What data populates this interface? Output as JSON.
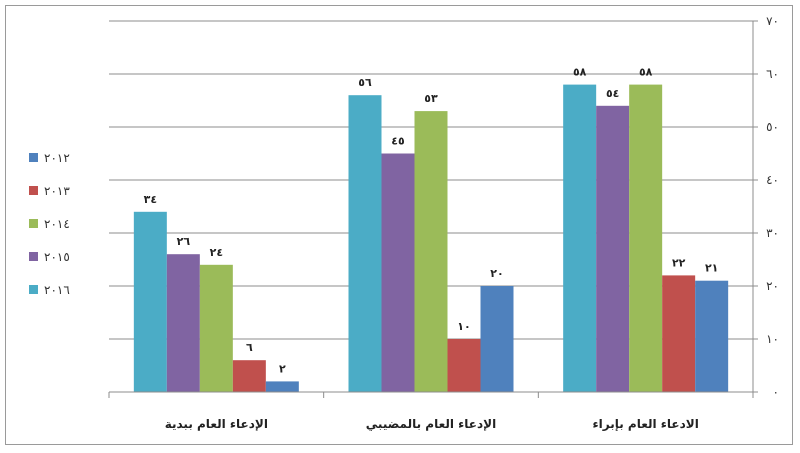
{
  "chart_data": {
    "type": "bar",
    "categories": [
      "الادعاء العام بإبراء",
      "الإدعاء العام بالمضيبي",
      "الإدعاء العام ببدية"
    ],
    "series": [
      {
        "name": "٢٠١٢",
        "color": "#4f81bd",
        "values": [
          21,
          20,
          2
        ],
        "labels": [
          "٢١",
          "٢٠",
          "٢"
        ]
      },
      {
        "name": "٢٠١٣",
        "color": "#c0504d",
        "values": [
          22,
          10,
          6
        ],
        "labels": [
          "٢٢",
          "١٠",
          "٦"
        ]
      },
      {
        "name": "٢٠١٤",
        "color": "#9bbb59",
        "values": [
          58,
          53,
          24
        ],
        "labels": [
          "٥٨",
          "٥٣",
          "٢٤"
        ]
      },
      {
        "name": "٢٠١٥",
        "color": "#8064a2",
        "values": [
          54,
          45,
          26
        ],
        "labels": [
          "٥٤",
          "٤٥",
          "٢٦"
        ]
      },
      {
        "name": "٢٠١٦",
        "color": "#4bacc6",
        "values": [
          58,
          56,
          34
        ],
        "labels": [
          "٥٨",
          "٥٦",
          "٣٤"
        ]
      }
    ],
    "ylim": [
      0,
      70
    ],
    "yticks": [
      0,
      10,
      20,
      30,
      40,
      50,
      60,
      70
    ],
    "ytick_labels": [
      "٠",
      "١٠",
      "٢٠",
      "٣٠",
      "٤٠",
      "٥٠",
      "٦٠",
      "٧٠"
    ],
    "y_axis_side": "right",
    "category_order": "right-to-left",
    "grid": true,
    "legend_position": "left"
  }
}
